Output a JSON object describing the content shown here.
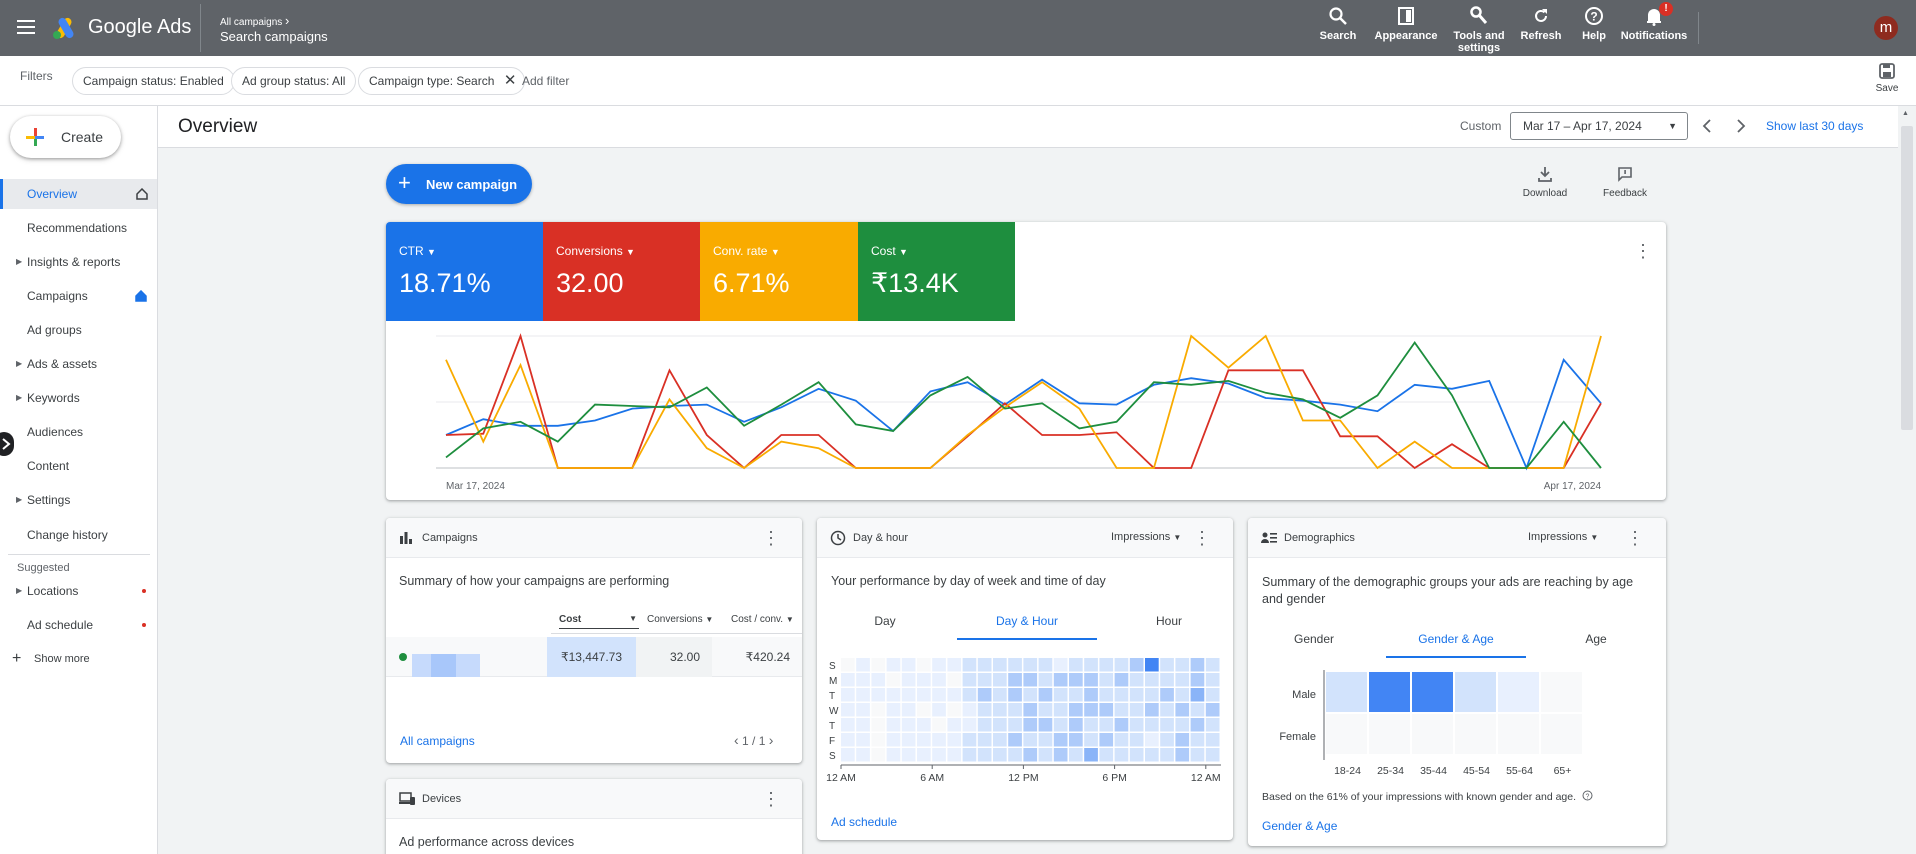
{
  "topbar": {
    "app_name": "Google Ads",
    "breadcrumb_parent": "All campaigns",
    "breadcrumb_current": "Search campaigns",
    "items": [
      {
        "label": "Search"
      },
      {
        "label": "Appearance"
      },
      {
        "label": "Tools and settings"
      },
      {
        "label": "Refresh"
      },
      {
        "label": "Help"
      },
      {
        "label": "Notifications"
      }
    ],
    "notification_badge": "!",
    "avatar_letter": "m"
  },
  "filters": {
    "label": "Filters",
    "chips": [
      "Campaign status: Enabled",
      "Ad group status: All",
      "Campaign type: Search"
    ],
    "add_filter": "Add filter",
    "save_label": "Save"
  },
  "sidebar": {
    "create_label": "Create",
    "items": [
      {
        "label": "Overview",
        "active": true
      },
      {
        "label": "Recommendations"
      },
      {
        "label": "Insights & reports",
        "expandable": true
      },
      {
        "label": "Campaigns"
      },
      {
        "label": "Ad groups"
      },
      {
        "label": "Ads & assets",
        "expandable": true
      },
      {
        "label": "Keywords",
        "expandable": true
      },
      {
        "label": "Audiences"
      },
      {
        "label": "Content"
      },
      {
        "label": "Settings",
        "expandable": true
      },
      {
        "label": "Change history"
      }
    ],
    "suggested_label": "Suggested",
    "suggested_items": [
      {
        "label": "Locations"
      },
      {
        "label": "Ad schedule"
      }
    ],
    "show_more": "Show more"
  },
  "header": {
    "title": "Overview",
    "range_type": "Custom",
    "date_range": "Mar 17 – Apr 17, 2024",
    "show_last": "Show last 30 days"
  },
  "actions": {
    "new_campaign": "New campaign",
    "download": "Download",
    "feedback": "Feedback"
  },
  "metrics": [
    {
      "label": "CTR",
      "value": "18.71%",
      "color": "#1a73e8"
    },
    {
      "label": "Conversions",
      "value": "32.00",
      "color": "#d93025"
    },
    {
      "label": "Conv. rate",
      "value": "6.71%",
      "color": "#f9ab00"
    },
    {
      "label": "Cost",
      "value": "₹13.4K",
      "color": "#1e8e3e"
    }
  ],
  "chart_data": {
    "type": "line",
    "x_start_label": "Mar 17, 2024",
    "x_end_label": "Apr 17, 2024",
    "grid": true,
    "series": [
      {
        "color": "#1a73e8",
        "values": [
          0.25,
          0.37,
          0.32,
          0.32,
          0.36,
          0.45,
          0.47,
          0.48,
          0.35,
          0.46,
          0.6,
          0.51,
          0.28,
          0.58,
          0.65,
          0.48,
          0.67,
          0.49,
          0.48,
          0.63,
          0.68,
          0.64,
          0.53,
          0.51,
          0.48,
          0.43,
          0.63,
          0.6,
          0.66,
          0.0,
          0.82,
          0.49
        ]
      },
      {
        "color": "#d93025",
        "values": [
          0.25,
          0.26,
          1.0,
          0.0,
          0.0,
          0.0,
          0.74,
          0.25,
          0.0,
          0.25,
          0.25,
          0.0,
          0.0,
          0.0,
          0.24,
          0.49,
          0.25,
          0.25,
          0.27,
          0.0,
          0.0,
          0.74,
          0.74,
          0.74,
          0.24,
          0.24,
          0.0,
          0.18,
          0.0,
          0.0,
          0.0,
          0.49
        ]
      },
      {
        "color": "#f9ab00",
        "values": [
          0.82,
          0.2,
          0.78,
          0.0,
          0.0,
          0.0,
          0.52,
          0.15,
          0.0,
          0.2,
          0.15,
          0.0,
          0.0,
          0.0,
          0.25,
          0.46,
          0.65,
          0.45,
          0.0,
          0.0,
          1.0,
          0.76,
          1.0,
          0.36,
          0.36,
          0.0,
          0.2,
          0.0,
          0.0,
          0.0,
          0.0,
          1.0
        ]
      },
      {
        "color": "#1e8e3e",
        "values": [
          0.08,
          0.3,
          0.35,
          0.2,
          0.48,
          0.47,
          0.46,
          0.61,
          0.32,
          0.48,
          0.65,
          0.33,
          0.28,
          0.55,
          0.69,
          0.45,
          0.49,
          0.3,
          0.35,
          0.65,
          0.63,
          0.66,
          0.57,
          0.52,
          0.38,
          0.55,
          0.95,
          0.55,
          0.0,
          0.0,
          0.35,
          0.0
        ]
      }
    ]
  },
  "campaigns_card": {
    "title": "Campaigns",
    "summary": "Summary of how your campaigns are performing",
    "columns": [
      "Cost",
      "Conversions",
      "Cost / conv."
    ],
    "row": {
      "cost": "₹13,447.73",
      "conversions": "32.00",
      "cost_per_conv": "₹420.24"
    },
    "footer_link": "All campaigns",
    "pagination": "1 / 1"
  },
  "dayhour_card": {
    "title": "Day & hour",
    "metric": "Impressions",
    "summary": "Your performance by day of week and time of day",
    "tabs": [
      "Day",
      "Day & Hour",
      "Hour"
    ],
    "selected_tab": 1,
    "days": [
      "S",
      "M",
      "T",
      "W",
      "T",
      "F",
      "S"
    ],
    "hour_labels": [
      "12 AM",
      "6 AM",
      "12 PM",
      "6 PM",
      "12 AM"
    ],
    "heatmap_levels": [
      [
        0,
        1,
        0,
        1,
        1,
        0,
        1,
        1,
        2,
        2,
        2,
        2,
        2,
        2,
        1,
        2,
        2,
        2,
        2,
        3,
        5,
        2,
        2,
        3,
        2
      ],
      [
        1,
        1,
        1,
        0,
        1,
        1,
        1,
        0,
        2,
        2,
        2,
        3,
        3,
        2,
        3,
        3,
        3,
        2,
        3,
        2,
        2,
        2,
        2,
        3,
        2
      ],
      [
        1,
        1,
        1,
        1,
        1,
        1,
        1,
        1,
        2,
        3,
        2,
        3,
        2,
        3,
        2,
        2,
        3,
        2,
        2,
        2,
        2,
        3,
        2,
        4,
        2
      ],
      [
        1,
        1,
        0,
        1,
        1,
        0,
        1,
        0,
        1,
        2,
        2,
        2,
        3,
        2,
        2,
        3,
        3,
        3,
        2,
        2,
        3,
        2,
        3,
        2,
        3
      ],
      [
        1,
        1,
        0,
        1,
        1,
        1,
        0,
        1,
        1,
        2,
        2,
        2,
        3,
        3,
        2,
        3,
        2,
        2,
        3,
        2,
        2,
        2,
        2,
        3,
        2
      ],
      [
        1,
        1,
        0,
        1,
        1,
        1,
        1,
        1,
        2,
        2,
        2,
        3,
        2,
        2,
        3,
        3,
        2,
        3,
        2,
        2,
        1,
        2,
        3,
        2,
        2
      ],
      [
        1,
        1,
        0,
        1,
        1,
        1,
        1,
        1,
        2,
        2,
        2,
        2,
        3,
        2,
        3,
        2,
        4,
        2,
        2,
        2,
        2,
        2,
        3,
        2,
        2
      ]
    ],
    "footer_link": "Ad schedule"
  },
  "devices_card": {
    "title": "Devices",
    "summary": "Ad performance across devices"
  },
  "demographics_card": {
    "title": "Demographics",
    "metric": "Impressions",
    "summary": "Summary of the demographic groups your ads are reaching by age and gender",
    "tabs": [
      "Gender",
      "Gender & Age",
      "Age"
    ],
    "selected_tab": 1,
    "rows": [
      "Male",
      "Female"
    ],
    "age_groups": [
      "18-24",
      "25-34",
      "35-44",
      "45-54",
      "55-64",
      "65+"
    ],
    "levels": [
      [
        2,
        5,
        5,
        2,
        1,
        0
      ],
      [
        0,
        0,
        0,
        0,
        0,
        0
      ]
    ],
    "note": "Based on the 61% of your impressions with known gender and age.",
    "footer_link": "Gender & Age"
  }
}
